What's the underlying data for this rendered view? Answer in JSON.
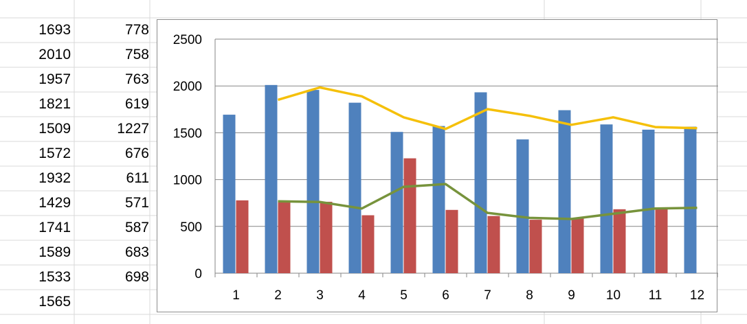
{
  "spreadsheet": {
    "col_a": [
      "1693",
      "2010",
      "1957",
      "1821",
      "1509",
      "1572",
      "1932",
      "1429",
      "1741",
      "1589",
      "1533",
      "1565"
    ],
    "col_b": [
      "778",
      "758",
      "763",
      "619",
      "1227",
      "676",
      "611",
      "571",
      "587",
      "683",
      "698"
    ]
  },
  "colors": {
    "series1": "#4F81BD",
    "series2": "#C0504D",
    "trend1": "#F5C00A",
    "trend2": "#77933C",
    "gridline": "#868686",
    "sheet_grid": "#d9d9d9"
  },
  "chart_data": {
    "type": "bar",
    "categories": [
      "1",
      "2",
      "3",
      "4",
      "5",
      "6",
      "7",
      "8",
      "9",
      "10",
      "11",
      "12"
    ],
    "series": [
      {
        "values": [
          1693,
          2010,
          1957,
          1821,
          1509,
          1572,
          1932,
          1429,
          1741,
          1589,
          1533,
          1565
        ]
      },
      {
        "values": [
          778,
          758,
          763,
          619,
          1227,
          676,
          611,
          571,
          587,
          683,
          698,
          null
        ]
      }
    ],
    "trendlines": [
      {
        "type": "line",
        "x": [
          2,
          3,
          4,
          5,
          6,
          7,
          8,
          9,
          10,
          11,
          12
        ],
        "values": [
          1852,
          1984,
          1889,
          1665,
          1541,
          1752,
          1681,
          1585,
          1665,
          1561,
          1549
        ]
      },
      {
        "type": "line",
        "x": [
          2,
          3,
          4,
          5,
          6,
          7,
          8,
          9,
          10,
          11,
          12
        ],
        "values": [
          768,
          761,
          691,
          923,
          952,
          644,
          591,
          579,
          635,
          691,
          698
        ]
      }
    ],
    "yticks": [
      "0",
      "500",
      "1000",
      "1500",
      "2000",
      "2500"
    ],
    "ylim": [
      0,
      2500
    ],
    "grid": true,
    "legend": "none"
  }
}
